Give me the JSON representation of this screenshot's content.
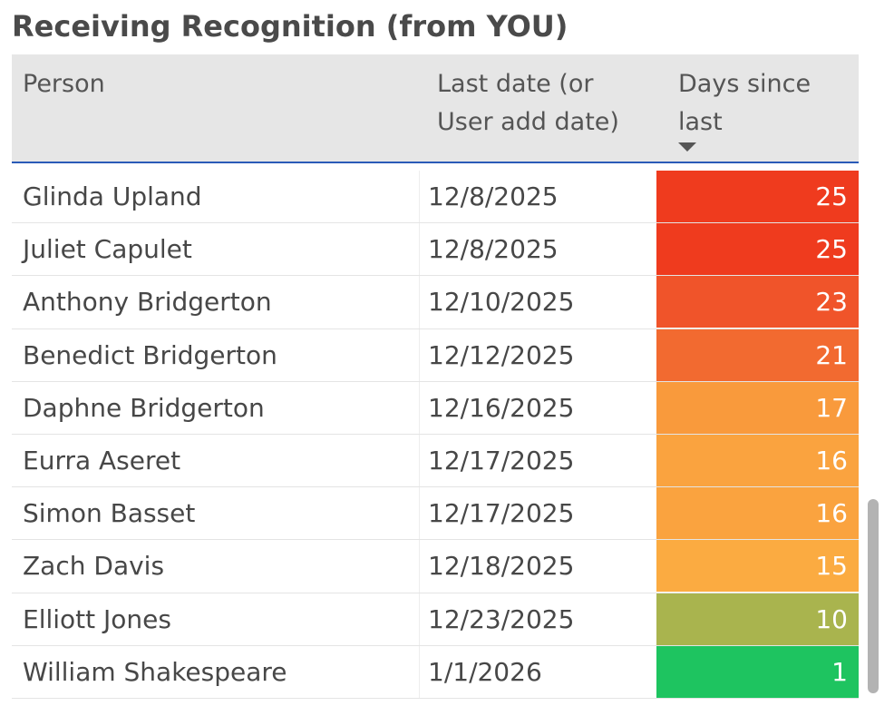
{
  "title": "Receiving Recognition (from YOU)",
  "columns": {
    "person": "Person",
    "last_date": "Last date (or User add date)",
    "days_since": "Days since last"
  },
  "sort": {
    "column": "days_since",
    "direction": "descending"
  },
  "rows": [
    {
      "person": "Glinda Upland",
      "date": "12/8/2025",
      "days": "25",
      "color": "#ef3b1e"
    },
    {
      "person": "Juliet Capulet",
      "date": "12/8/2025",
      "days": "25",
      "color": "#ef3b1e"
    },
    {
      "person": "Anthony Bridgerton",
      "date": "12/10/2025",
      "days": "23",
      "color": "#f0542a"
    },
    {
      "person": "Benedict Bridgerton",
      "date": "12/12/2025",
      "days": "21",
      "color": "#f26a30"
    },
    {
      "person": "Daphne Bridgerton",
      "date": "12/16/2025",
      "days": "17",
      "color": "#f99a3c"
    },
    {
      "person": "Eurra Aseret",
      "date": "12/17/2025",
      "days": "16",
      "color": "#faa33f"
    },
    {
      "person": "Simon Basset",
      "date": "12/17/2025",
      "days": "16",
      "color": "#faa33f"
    },
    {
      "person": "Zach Davis",
      "date": "12/18/2025",
      "days": "15",
      "color": "#fbab41"
    },
    {
      "person": "Elliott Jones",
      "date": "12/23/2025",
      "days": "10",
      "color": "#a9b44e"
    },
    {
      "person": "William Shakespeare",
      "date": "1/1/2026",
      "days": "1",
      "color": "#1ec460"
    }
  ]
}
